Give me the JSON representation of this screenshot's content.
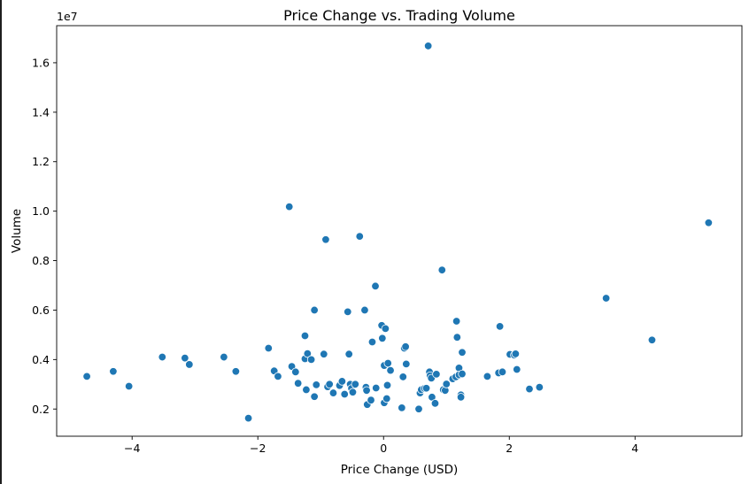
{
  "chart_data": {
    "type": "scatter",
    "title": "Price Change vs. Trading Volume",
    "xlabel": "Price Change (USD)",
    "ylabel": "Volume",
    "offset_label": "1e7",
    "xlim": [
      -5.2,
      5.7
    ],
    "ylim": [
      900000,
      17500000
    ],
    "x_ticks": [
      -4,
      -2,
      0,
      2,
      4
    ],
    "y_ticks": [
      2000000,
      4000000,
      6000000,
      8000000,
      10000000,
      12000000,
      14000000,
      16000000
    ],
    "x_tick_labels": [
      "−4",
      "−2",
      "0",
      "2",
      "4"
    ],
    "y_tick_labels": [
      "0.2",
      "0.4",
      "0.6",
      "0.8",
      "1.0",
      "1.2",
      "1.4",
      "1.6"
    ],
    "grid": false,
    "marker_color": "#1f77b4",
    "points": [
      [
        -4.72,
        3320000
      ],
      [
        -4.3,
        3520000
      ],
      [
        -4.05,
        2920000
      ],
      [
        -3.52,
        4100000
      ],
      [
        -3.16,
        4060000
      ],
      [
        -3.09,
        3800000
      ],
      [
        -2.54,
        4100000
      ],
      [
        -2.35,
        3520000
      ],
      [
        -2.15,
        1630000
      ],
      [
        -1.83,
        4460000
      ],
      [
        -1.74,
        3540000
      ],
      [
        -1.68,
        3320000
      ],
      [
        -1.5,
        10180000
      ],
      [
        -1.46,
        3720000
      ],
      [
        -1.4,
        3500000
      ],
      [
        -1.36,
        3040000
      ],
      [
        -1.25,
        4030000
      ],
      [
        -1.25,
        4960000
      ],
      [
        -1.23,
        2780000
      ],
      [
        -1.21,
        4240000
      ],
      [
        -1.15,
        4000000
      ],
      [
        -1.1,
        2500000
      ],
      [
        -1.1,
        6000000
      ],
      [
        -1.07,
        2980000
      ],
      [
        -0.95,
        4220000
      ],
      [
        -0.92,
        8850000
      ],
      [
        -0.89,
        2900000
      ],
      [
        -0.86,
        3000000
      ],
      [
        -0.8,
        2650000
      ],
      [
        -0.7,
        2950000
      ],
      [
        -0.66,
        3120000
      ],
      [
        -0.62,
        2600000
      ],
      [
        -0.57,
        5930000
      ],
      [
        -0.55,
        4220000
      ],
      [
        -0.53,
        3000000
      ],
      [
        -0.51,
        2830000
      ],
      [
        -0.49,
        2680000
      ],
      [
        -0.45,
        3000000
      ],
      [
        -0.38,
        8980000
      ],
      [
        -0.3,
        6000000
      ],
      [
        -0.28,
        2880000
      ],
      [
        -0.27,
        2750000
      ],
      [
        -0.26,
        2180000
      ],
      [
        -0.2,
        2360000
      ],
      [
        -0.18,
        4710000
      ],
      [
        -0.13,
        6970000
      ],
      [
        -0.12,
        2850000
      ],
      [
        -0.03,
        5380000
      ],
      [
        -0.02,
        4860000
      ],
      [
        0.01,
        3760000
      ],
      [
        0.01,
        2250000
      ],
      [
        0.03,
        5250000
      ],
      [
        0.05,
        2420000
      ],
      [
        0.06,
        2960000
      ],
      [
        0.07,
        3850000
      ],
      [
        0.11,
        3560000
      ],
      [
        0.29,
        2050000
      ],
      [
        0.31,
        3300000
      ],
      [
        0.33,
        4460000
      ],
      [
        0.35,
        4520000
      ],
      [
        0.36,
        3820000
      ],
      [
        0.56,
        2000000
      ],
      [
        0.58,
        2650000
      ],
      [
        0.6,
        2780000
      ],
      [
        0.65,
        2830000
      ],
      [
        0.68,
        2840000
      ],
      [
        0.71,
        16680000
      ],
      [
        0.73,
        3500000
      ],
      [
        0.74,
        3350000
      ],
      [
        0.76,
        3250000
      ],
      [
        0.77,
        2480000
      ],
      [
        0.82,
        2230000
      ],
      [
        0.84,
        3410000
      ],
      [
        0.93,
        7620000
      ],
      [
        0.95,
        2780000
      ],
      [
        0.98,
        2750000
      ],
      [
        1.0,
        3010000
      ],
      [
        1.1,
        3220000
      ],
      [
        1.15,
        3300000
      ],
      [
        1.16,
        5550000
      ],
      [
        1.17,
        4900000
      ],
      [
        1.2,
        3660000
      ],
      [
        1.2,
        3380000
      ],
      [
        1.23,
        2570000
      ],
      [
        1.23,
        2480000
      ],
      [
        1.25,
        3420000
      ],
      [
        1.25,
        4290000
      ],
      [
        1.65,
        3320000
      ],
      [
        1.83,
        3460000
      ],
      [
        1.85,
        5340000
      ],
      [
        1.89,
        3500000
      ],
      [
        2.01,
        4210000
      ],
      [
        2.08,
        4180000
      ],
      [
        2.1,
        4230000
      ],
      [
        2.12,
        3600000
      ],
      [
        2.32,
        2810000
      ],
      [
        2.48,
        2880000
      ],
      [
        3.54,
        6480000
      ],
      [
        4.27,
        4790000
      ],
      [
        5.17,
        9530000
      ]
    ]
  }
}
